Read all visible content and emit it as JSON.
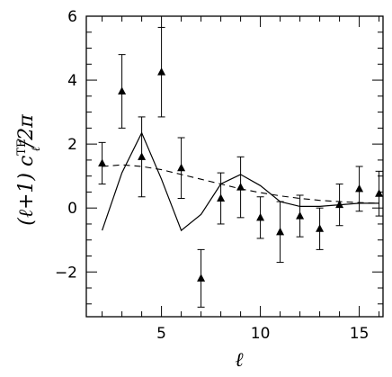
{
  "chart_data": {
    "type": "scatter",
    "xlabel": "ℓ",
    "ylabel": "(ℓ+1) cℓTE/2π",
    "ylabel_parts": {
      "pre": "(ℓ+1)  c",
      "sup": "TE",
      "sub": "ℓ",
      "post": "/2π"
    },
    "xlim": [
      1.2,
      16.2
    ],
    "ylim": [
      -3.4,
      6.0
    ],
    "x_ticks": [
      5,
      10,
      15
    ],
    "y_ticks": [
      -2,
      0,
      2,
      4,
      6
    ],
    "grid": false,
    "series": [
      {
        "kind": "points",
        "marker": "triangle",
        "x": [
          2,
          3,
          4,
          5,
          6,
          7,
          8,
          9,
          10,
          11,
          12,
          13,
          14,
          15,
          16
        ],
        "y": [
          1.4,
          3.65,
          1.6,
          4.25,
          1.25,
          -2.2,
          0.3,
          0.65,
          -0.3,
          -0.75,
          -0.25,
          -0.65,
          0.1,
          0.6,
          0.45
        ],
        "yerr": [
          0.65,
          1.15,
          1.25,
          1.4,
          0.95,
          0.9,
          0.8,
          0.95,
          0.65,
          0.95,
          0.65,
          0.65,
          0.65,
          0.7,
          0.7
        ]
      },
      {
        "kind": "line",
        "style": "solid",
        "x": [
          2,
          3,
          4,
          5,
          6,
          7,
          8,
          9,
          10,
          11,
          12,
          13,
          14,
          15,
          16
        ],
        "y": [
          -0.7,
          1.1,
          2.35,
          0.9,
          -0.7,
          -0.2,
          0.75,
          1.05,
          0.7,
          0.2,
          0.05,
          0.05,
          0.1,
          0.15,
          0.15
        ]
      },
      {
        "kind": "line",
        "style": "dashed",
        "x": [
          2,
          3,
          4,
          5,
          6,
          7,
          8,
          9,
          10,
          11,
          12,
          13,
          14,
          15,
          16
        ],
        "y": [
          1.3,
          1.35,
          1.3,
          1.2,
          1.05,
          0.9,
          0.75,
          0.6,
          0.48,
          0.38,
          0.3,
          0.24,
          0.2,
          0.17,
          0.15
        ]
      }
    ]
  }
}
